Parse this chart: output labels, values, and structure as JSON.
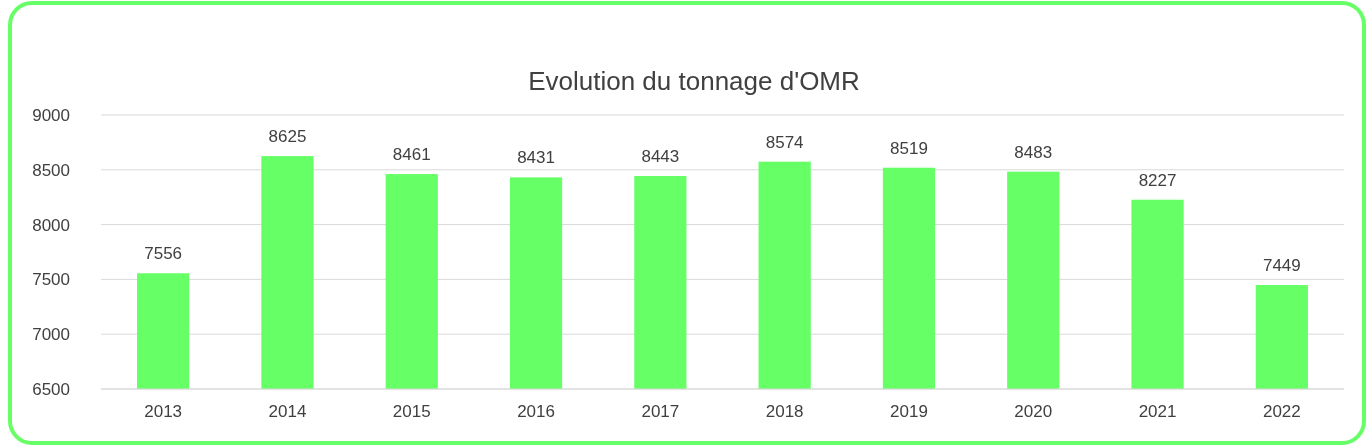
{
  "chart_data": {
    "type": "bar",
    "title": "Evolution du tonnage d'OMR",
    "categories": [
      "2013",
      "2014",
      "2015",
      "2016",
      "2017",
      "2018",
      "2019",
      "2020",
      "2021",
      "2022"
    ],
    "values": [
      7556,
      8625,
      8461,
      8431,
      8443,
      8574,
      8519,
      8483,
      8227,
      7449
    ],
    "color": "#66ff66",
    "ylim": [
      6500,
      9000
    ],
    "yticks": [
      6500,
      7000,
      7500,
      8000,
      8500,
      9000
    ],
    "grid": "y",
    "data_labels": true
  }
}
